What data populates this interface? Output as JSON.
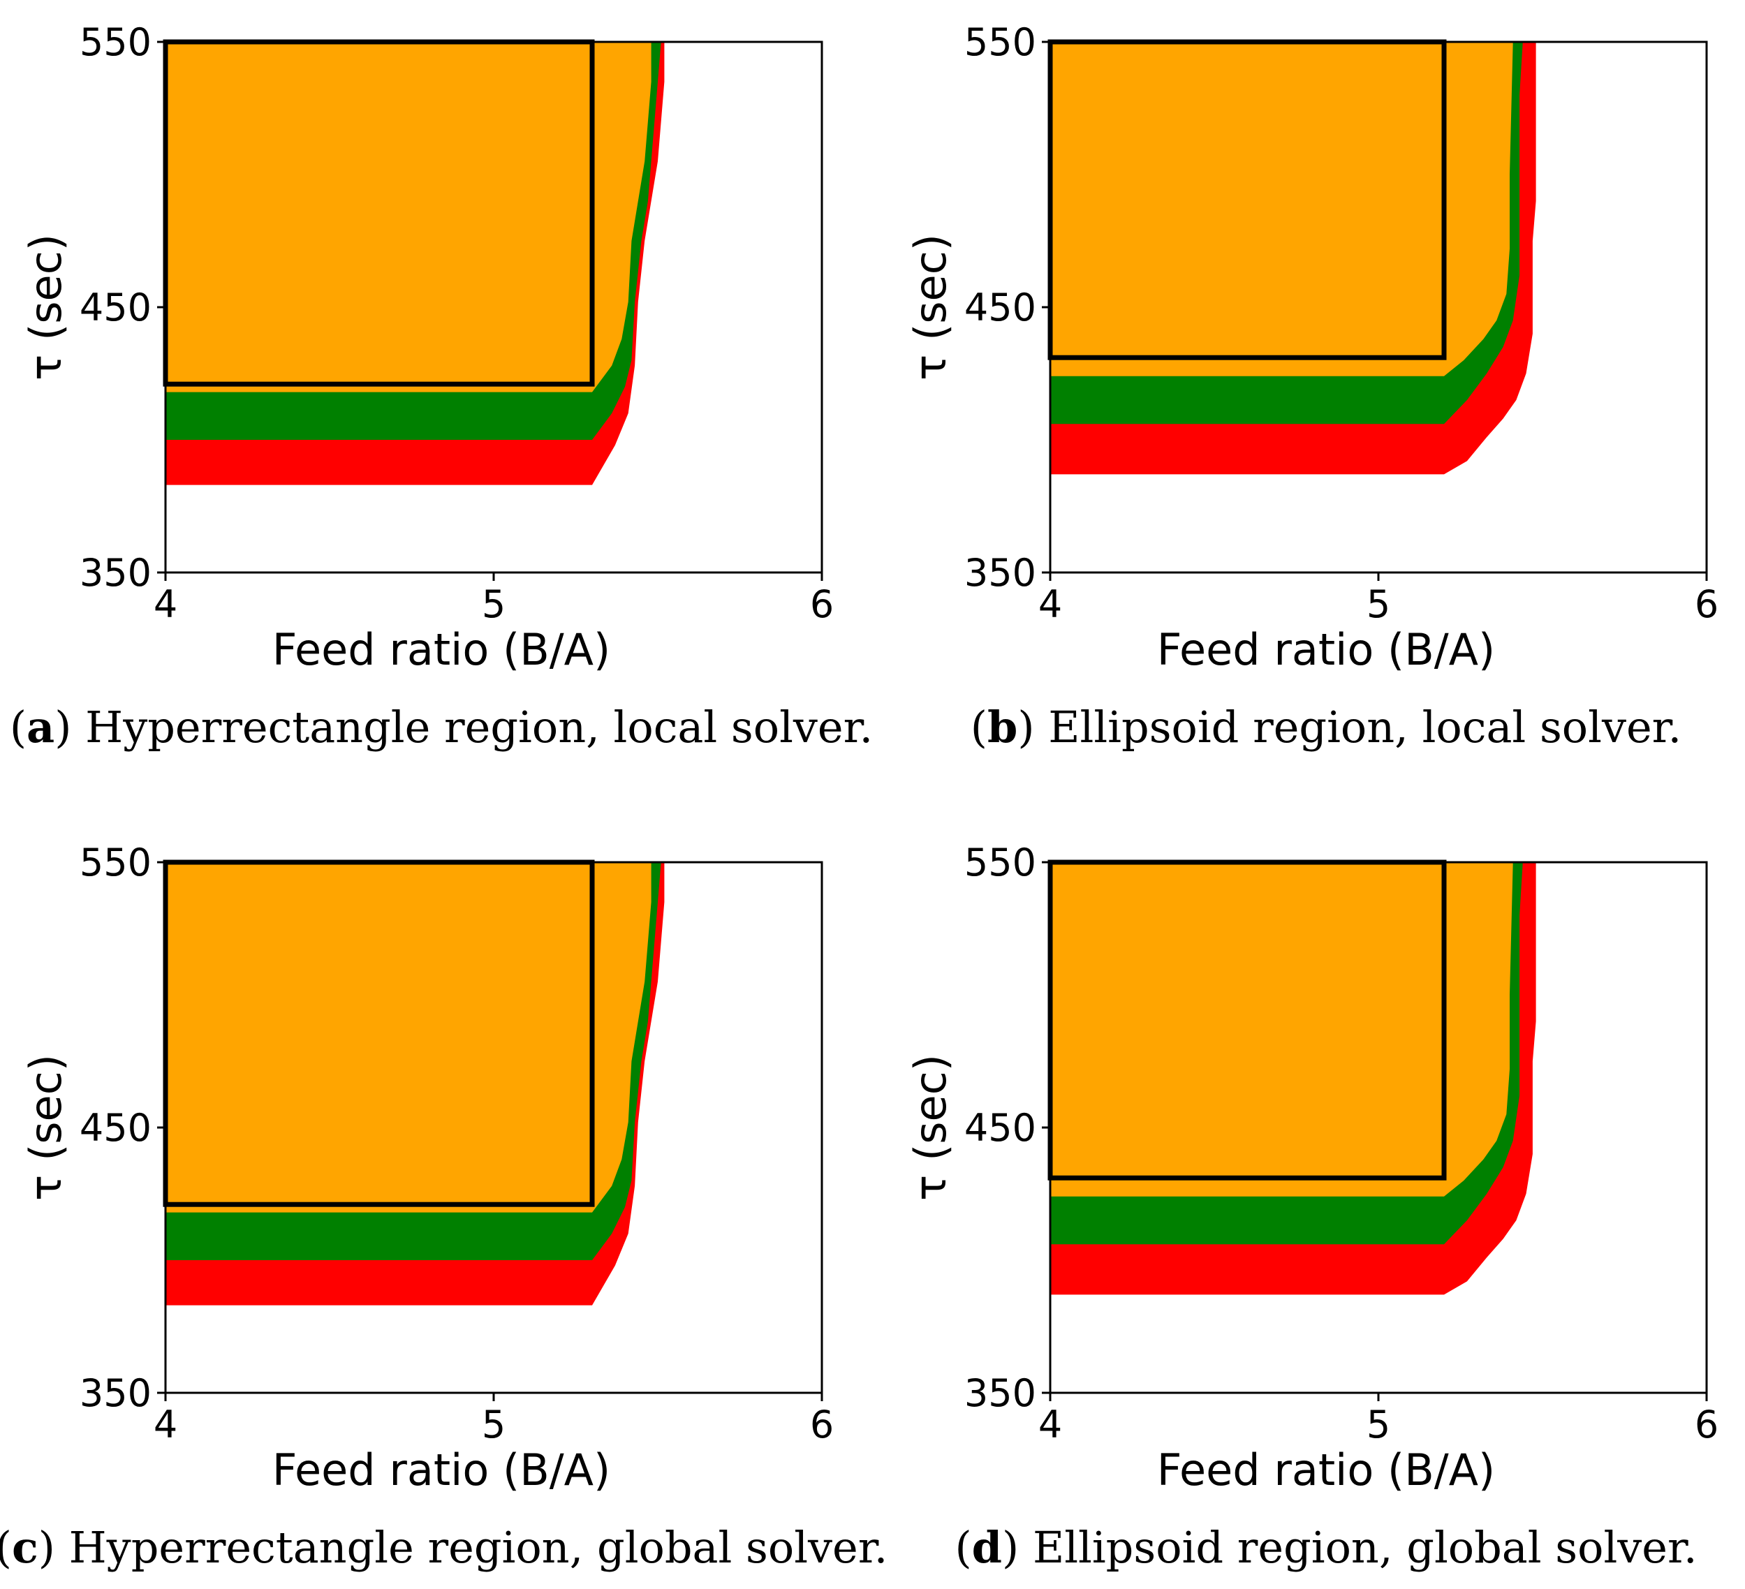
{
  "colors": {
    "feasible_region": "#ffa500",
    "margin_band": "#008000",
    "outer_band": "#ff0000",
    "box": "#000000",
    "background": "#ffffff"
  },
  "chart_data": [
    {
      "type": "region-map",
      "panel": "a",
      "caption_letter": "a",
      "caption_text": "Hyperrectangle region, local solver.",
      "xlabel": "Feed ratio (B/A)",
      "ylabel": "τ (sec)",
      "xlim": [
        4,
        6
      ],
      "ylim": [
        350,
        550
      ],
      "xticks": [
        "4",
        "5",
        "6"
      ],
      "yticks": [
        "350",
        "450",
        "550"
      ],
      "box": {
        "shape": "hyperrectangle",
        "x_min": 4.0,
        "x_max": 5.3,
        "y_min": 421,
        "y_max": 550
      },
      "layers": [
        {
          "name": "red",
          "color": "#ff0000",
          "boundary": [
            [
              4.0,
              383
            ],
            [
              5.3,
              383
            ],
            [
              5.37,
              398
            ],
            [
              5.41,
              410
            ],
            [
              5.43,
              428
            ],
            [
              5.44,
              452
            ],
            [
              5.46,
              475
            ],
            [
              5.48,
              490
            ],
            [
              5.5,
              505
            ],
            [
              5.51,
              520
            ],
            [
              5.52,
              535
            ],
            [
              5.52,
              550
            ],
            [
              4.0,
              550
            ]
          ]
        },
        {
          "name": "green",
          "color": "#008000",
          "boundary": [
            [
              4.0,
              400
            ],
            [
              5.3,
              400
            ],
            [
              5.36,
              410
            ],
            [
              5.4,
              420
            ],
            [
              5.42,
              430
            ],
            [
              5.43,
              452
            ],
            [
              5.45,
              475
            ],
            [
              5.47,
              490
            ],
            [
              5.48,
              505
            ],
            [
              5.49,
              520
            ],
            [
              5.5,
              535
            ],
            [
              5.51,
              550
            ],
            [
              4.0,
              550
            ]
          ]
        },
        {
          "name": "orange",
          "color": "#ffa500",
          "boundary": [
            [
              4.0,
              418
            ],
            [
              5.3,
              418
            ],
            [
              5.36,
              428
            ],
            [
              5.39,
              438
            ],
            [
              5.41,
              452
            ],
            [
              5.42,
              475
            ],
            [
              5.44,
              490
            ],
            [
              5.46,
              505
            ],
            [
              5.47,
              520
            ],
            [
              5.48,
              535
            ],
            [
              5.48,
              550
            ],
            [
              4.0,
              550
            ]
          ]
        }
      ]
    },
    {
      "type": "region-map",
      "panel": "b",
      "caption_letter": "b",
      "caption_text": "Ellipsoid region, local solver.",
      "xlabel": "Feed ratio (B/A)",
      "ylabel": "τ (sec)",
      "xlim": [
        4,
        6
      ],
      "ylim": [
        350,
        550
      ],
      "xticks": [
        "4",
        "5",
        "6"
      ],
      "yticks": [
        "350",
        "450",
        "550"
      ],
      "box": {
        "shape": "hyperrectangle",
        "x_min": 4.0,
        "x_max": 5.2,
        "y_min": 431,
        "y_max": 550
      },
      "layers": [
        {
          "name": "red",
          "color": "#ff0000",
          "boundary": [
            [
              4.0,
              387
            ],
            [
              5.2,
              387
            ],
            [
              5.27,
              392
            ],
            [
              5.33,
              401
            ],
            [
              5.38,
              408
            ],
            [
              5.42,
              415
            ],
            [
              5.45,
              425
            ],
            [
              5.47,
              440
            ],
            [
              5.47,
              455
            ],
            [
              5.47,
              475
            ],
            [
              5.48,
              490
            ],
            [
              5.48,
              550
            ],
            [
              4.0,
              550
            ]
          ]
        },
        {
          "name": "green",
          "color": "#008000",
          "boundary": [
            [
              4.0,
              406
            ],
            [
              5.2,
              406
            ],
            [
              5.27,
              415
            ],
            [
              5.33,
              425
            ],
            [
              5.38,
              435
            ],
            [
              5.41,
              445
            ],
            [
              5.43,
              462
            ],
            [
              5.43,
              490
            ],
            [
              5.43,
              530
            ],
            [
              5.44,
              550
            ],
            [
              4.0,
              550
            ]
          ]
        },
        {
          "name": "orange",
          "color": "#ffa500",
          "boundary": [
            [
              4.0,
              424
            ],
            [
              5.2,
              424
            ],
            [
              5.26,
              430
            ],
            [
              5.32,
              438
            ],
            [
              5.36,
              445
            ],
            [
              5.39,
              455
            ],
            [
              5.4,
              472
            ],
            [
              5.4,
              500
            ],
            [
              5.41,
              550
            ],
            [
              4.0,
              550
            ]
          ]
        }
      ]
    },
    {
      "type": "region-map",
      "panel": "c",
      "caption_letter": "c",
      "caption_text": "Hyperrectangle region, global solver.",
      "xlabel": "Feed ratio (B/A)",
      "ylabel": "τ (sec)",
      "xlim": [
        4,
        6
      ],
      "ylim": [
        350,
        550
      ],
      "xticks": [
        "4",
        "5",
        "6"
      ],
      "yticks": [
        "350",
        "450",
        "550"
      ],
      "box": {
        "shape": "hyperrectangle",
        "x_min": 4.0,
        "x_max": 5.3,
        "y_min": 421,
        "y_max": 550
      },
      "layers": [
        {
          "name": "red",
          "color": "#ff0000",
          "boundary": [
            [
              4.0,
              383
            ],
            [
              5.3,
              383
            ],
            [
              5.37,
              398
            ],
            [
              5.41,
              410
            ],
            [
              5.43,
              428
            ],
            [
              5.44,
              452
            ],
            [
              5.46,
              475
            ],
            [
              5.48,
              490
            ],
            [
              5.5,
              505
            ],
            [
              5.51,
              520
            ],
            [
              5.52,
              535
            ],
            [
              5.52,
              550
            ],
            [
              4.0,
              550
            ]
          ]
        },
        {
          "name": "green",
          "color": "#008000",
          "boundary": [
            [
              4.0,
              400
            ],
            [
              5.3,
              400
            ],
            [
              5.36,
              410
            ],
            [
              5.4,
              420
            ],
            [
              5.42,
              430
            ],
            [
              5.43,
              452
            ],
            [
              5.45,
              475
            ],
            [
              5.47,
              490
            ],
            [
              5.48,
              505
            ],
            [
              5.49,
              520
            ],
            [
              5.5,
              535
            ],
            [
              5.51,
              550
            ],
            [
              4.0,
              550
            ]
          ]
        },
        {
          "name": "orange",
          "color": "#ffa500",
          "boundary": [
            [
              4.0,
              418
            ],
            [
              5.3,
              418
            ],
            [
              5.36,
              428
            ],
            [
              5.39,
              438
            ],
            [
              5.41,
              452
            ],
            [
              5.42,
              475
            ],
            [
              5.44,
              490
            ],
            [
              5.46,
              505
            ],
            [
              5.47,
              520
            ],
            [
              5.48,
              535
            ],
            [
              5.48,
              550
            ],
            [
              4.0,
              550
            ]
          ]
        }
      ]
    },
    {
      "type": "region-map",
      "panel": "d",
      "caption_letter": "d",
      "caption_text": "Ellipsoid region, global solver.",
      "xlabel": "Feed ratio (B/A)",
      "ylabel": "τ (sec)",
      "xlim": [
        4,
        6
      ],
      "ylim": [
        350,
        550
      ],
      "xticks": [
        "4",
        "5",
        "6"
      ],
      "yticks": [
        "350",
        "450",
        "550"
      ],
      "box": {
        "shape": "hyperrectangle",
        "x_min": 4.0,
        "x_max": 5.2,
        "y_min": 431,
        "y_max": 550
      },
      "layers": [
        {
          "name": "red",
          "color": "#ff0000",
          "boundary": [
            [
              4.0,
              387
            ],
            [
              5.2,
              387
            ],
            [
              5.27,
              392
            ],
            [
              5.33,
              401
            ],
            [
              5.38,
              408
            ],
            [
              5.42,
              415
            ],
            [
              5.45,
              425
            ],
            [
              5.47,
              440
            ],
            [
              5.47,
              455
            ],
            [
              5.47,
              475
            ],
            [
              5.48,
              490
            ],
            [
              5.48,
              550
            ],
            [
              4.0,
              550
            ]
          ]
        },
        {
          "name": "green",
          "color": "#008000",
          "boundary": [
            [
              4.0,
              406
            ],
            [
              5.2,
              406
            ],
            [
              5.27,
              415
            ],
            [
              5.33,
              425
            ],
            [
              5.38,
              435
            ],
            [
              5.41,
              445
            ],
            [
              5.43,
              462
            ],
            [
              5.43,
              490
            ],
            [
              5.43,
              530
            ],
            [
              5.44,
              550
            ],
            [
              4.0,
              550
            ]
          ]
        },
        {
          "name": "orange",
          "color": "#ffa500",
          "boundary": [
            [
              4.0,
              424
            ],
            [
              5.2,
              424
            ],
            [
              5.26,
              430
            ],
            [
              5.32,
              438
            ],
            [
              5.36,
              445
            ],
            [
              5.39,
              455
            ],
            [
              5.4,
              472
            ],
            [
              5.4,
              500
            ],
            [
              5.41,
              550
            ],
            [
              4.0,
              550
            ]
          ]
        }
      ]
    }
  ]
}
